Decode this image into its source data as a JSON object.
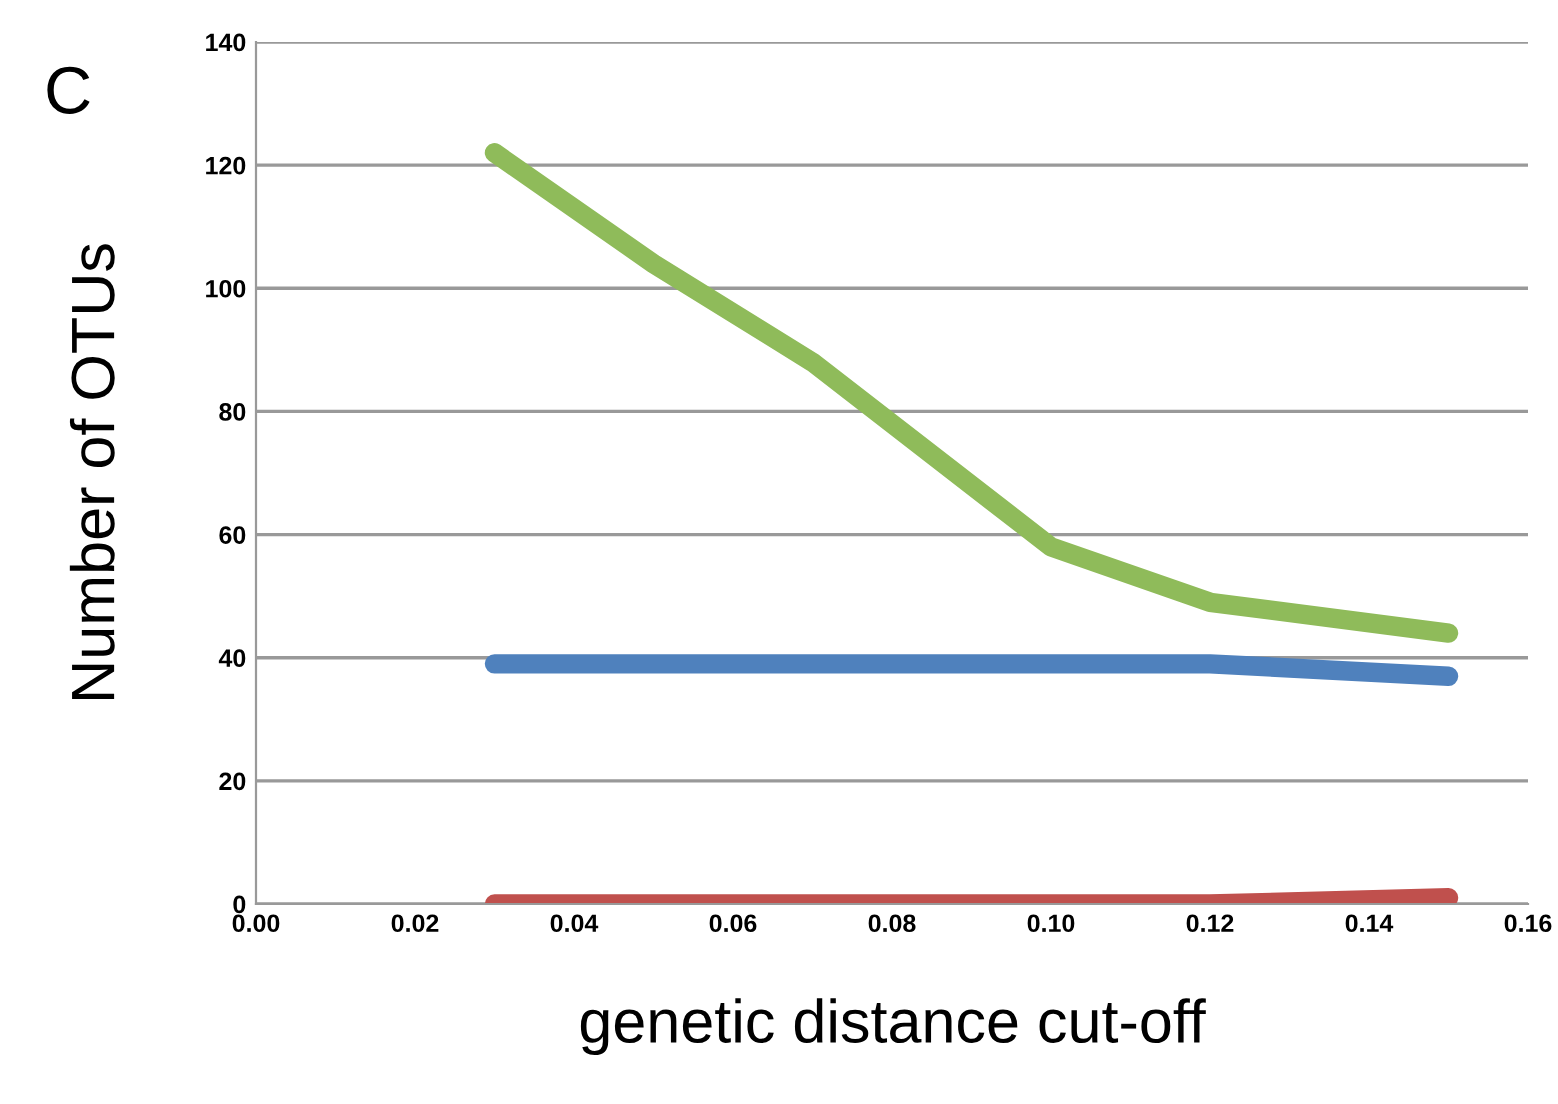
{
  "chart_data": {
    "type": "line",
    "title": "C",
    "xlabel": "genetic distance cut-off",
    "ylabel": "Number of OTUs",
    "xlim": [
      0,
      0.16
    ],
    "xticks": [
      {
        "value": 0,
        "label": "0.00"
      },
      {
        "value": 0.02,
        "label": "0.02"
      },
      {
        "value": 0.04,
        "label": "0.04"
      },
      {
        "value": 0.06,
        "label": "0.06"
      },
      {
        "value": 0.08,
        "label": "0.08"
      },
      {
        "value": 0.1,
        "label": "0.10"
      },
      {
        "value": 0.12,
        "label": "0.12"
      },
      {
        "value": 0.14,
        "label": "0.14"
      },
      {
        "value": 0.16,
        "label": "0.16"
      }
    ],
    "ylim": [
      0,
      140
    ],
    "yticks": [
      0,
      20,
      40,
      60,
      80,
      100,
      120,
      140
    ],
    "grid": "y",
    "marker": "none",
    "line_style": "solid",
    "x": [
      0.03,
      0.05,
      0.07,
      0.1,
      0.12,
      0.15
    ],
    "series": [
      {
        "color": "#8fbb5a",
        "values": [
          122,
          104,
          88,
          58,
          49,
          44
        ]
      },
      {
        "color": "#4f81bd",
        "values": [
          39,
          39,
          39,
          39,
          39,
          37
        ]
      },
      {
        "color": "#c0504d",
        "values": [
          0,
          0,
          0,
          0,
          0,
          1
        ]
      }
    ]
  }
}
